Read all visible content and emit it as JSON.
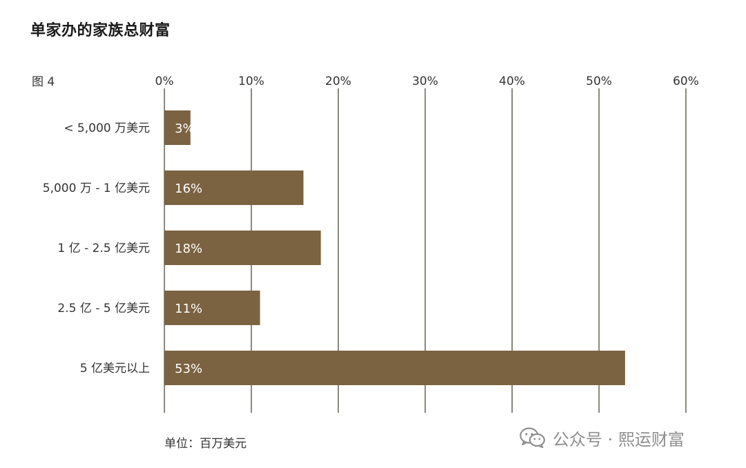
{
  "header": {
    "title": "单家办的家族总财富",
    "figure_label": "图 4"
  },
  "footer": {
    "unit_note": "单位：百万美元",
    "watermark_text": "公众号 · 熙运财富",
    "watermark_icon": "wechat-icon"
  },
  "colors": {
    "bar": "#7b6241",
    "grid": "#4a4a3a",
    "bar_label": "#ffffff",
    "text": "#333333"
  },
  "chart_data": {
    "type": "bar",
    "orientation": "horizontal",
    "categories": [
      "< 5,000 万美元",
      "5,000 万 - 1 亿美元",
      "1 亿 - 2.5 亿美元",
      "2.5 亿 - 5 亿美元",
      "5 亿美元以上"
    ],
    "values": [
      3,
      16,
      18,
      11,
      53
    ],
    "value_labels": [
      "3%",
      "16%",
      "18%",
      "11%",
      "53%"
    ],
    "xlim": [
      0,
      60
    ],
    "xticks": [
      0,
      10,
      20,
      30,
      40,
      50,
      60
    ],
    "xtick_labels": [
      "0%",
      "10%",
      "20%",
      "30%",
      "40%",
      "50%",
      "60%"
    ],
    "x_axis_position": "top",
    "grid": true
  }
}
